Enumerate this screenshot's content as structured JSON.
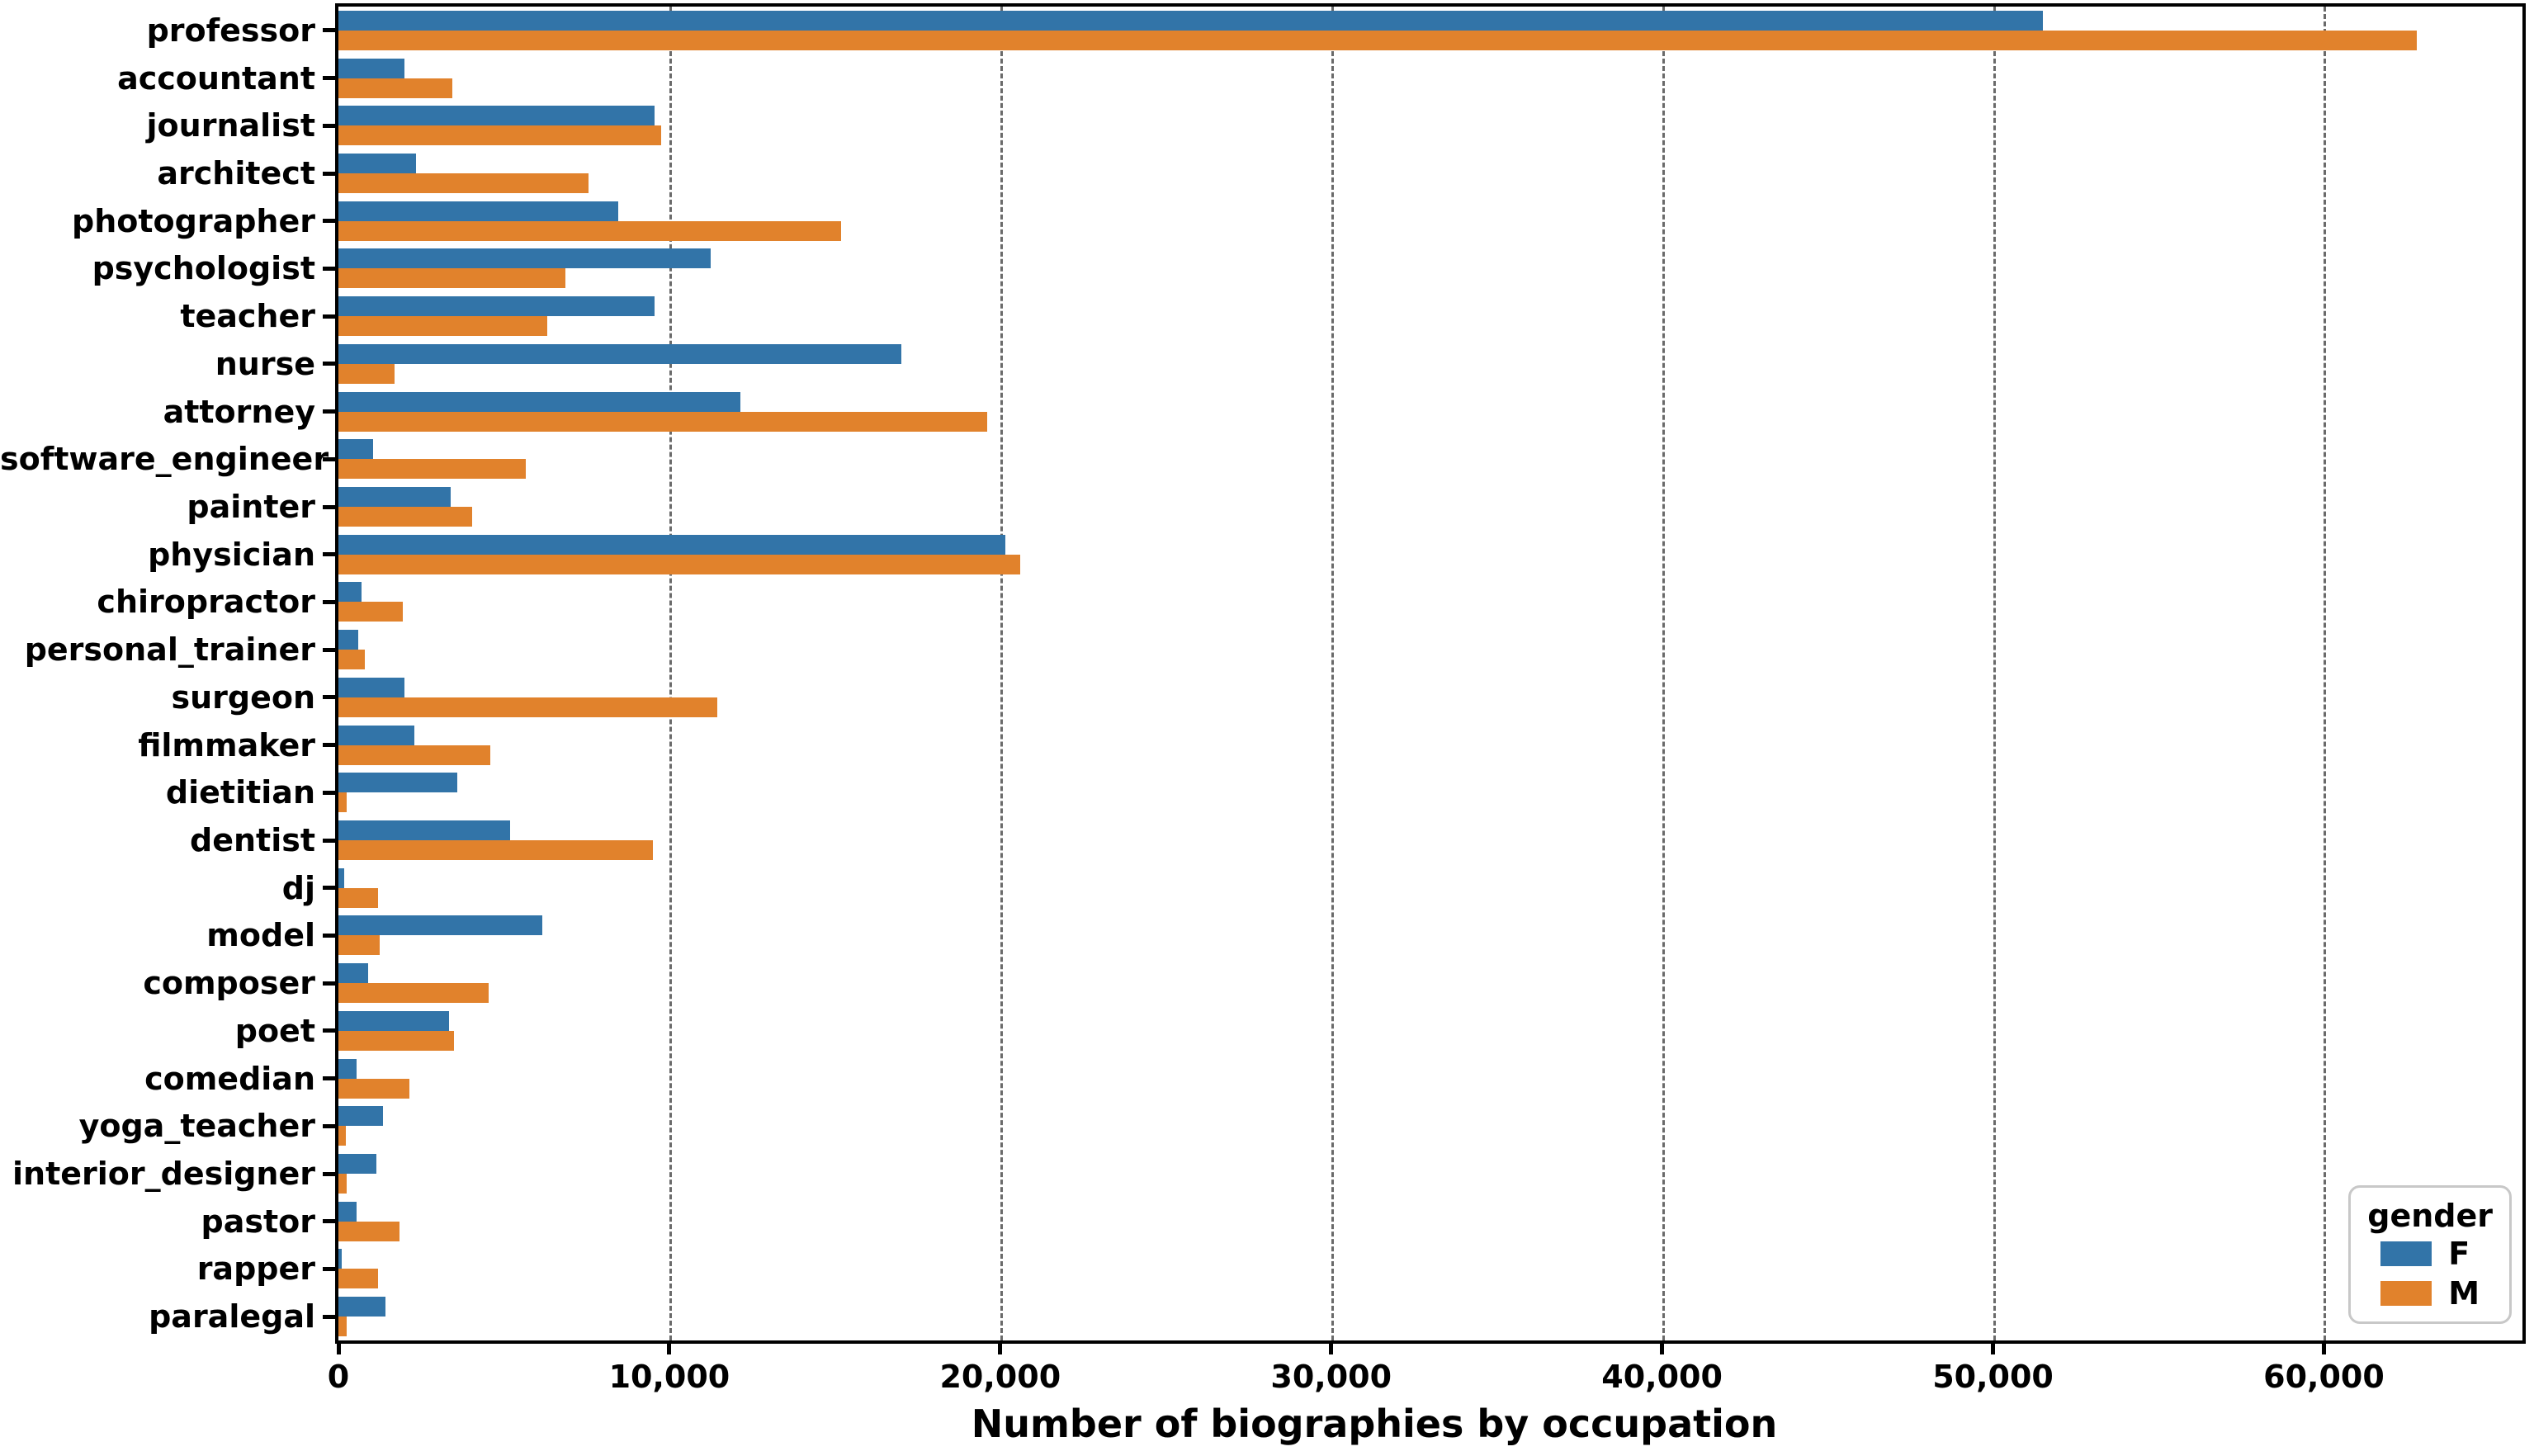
{
  "chart_data": {
    "type": "bar",
    "orientation": "horizontal",
    "xlabel": "Number of biographies by occupation",
    "ylabel": "",
    "xlim": [
      0,
      66000
    ],
    "grid": "vertical-dashed",
    "legend_position": "lower-right",
    "x_ticks": [
      {
        "value": 0,
        "label": "0"
      },
      {
        "value": 10000,
        "label": "10,000"
      },
      {
        "value": 20000,
        "label": "20,000"
      },
      {
        "value": 30000,
        "label": "30,000"
      },
      {
        "value": 40000,
        "label": "40,000"
      },
      {
        "value": 50000,
        "label": "50,000"
      },
      {
        "value": 60000,
        "label": "60,000"
      }
    ],
    "categories": [
      "professor",
      "accountant",
      "journalist",
      "architect",
      "photographer",
      "psychologist",
      "teacher",
      "nurse",
      "attorney",
      "software_engineer",
      "painter",
      "physician",
      "chiropractor",
      "personal_trainer",
      "surgeon",
      "filmmaker",
      "dietitian",
      "dentist",
      "dj",
      "model",
      "composer",
      "poet",
      "comedian",
      "yoga_teacher",
      "interior_designer",
      "pastor",
      "rapper",
      "paralegal"
    ],
    "series": [
      {
        "name": "F",
        "color": "#3274a8",
        "values": [
          51500,
          2000,
          9550,
          2350,
          8450,
          11250,
          9550,
          17000,
          12150,
          1050,
          3400,
          20150,
          700,
          600,
          2000,
          2300,
          3600,
          5200,
          170,
          6150,
          900,
          3350,
          550,
          1350,
          1150,
          550,
          100,
          1430
        ]
      },
      {
        "name": "M",
        "color": "#e1822c",
        "values": [
          62800,
          3450,
          9750,
          7550,
          15200,
          6850,
          6300,
          1700,
          19600,
          5650,
          4050,
          20600,
          1950,
          800,
          11450,
          4600,
          250,
          9500,
          1200,
          1250,
          4550,
          3500,
          2150,
          220,
          250,
          1850,
          1200,
          250
        ]
      }
    ],
    "legend": {
      "title": "gender",
      "entries": [
        {
          "label": "F",
          "color": "#3274a8"
        },
        {
          "label": "M",
          "color": "#e1822c"
        }
      ]
    }
  }
}
